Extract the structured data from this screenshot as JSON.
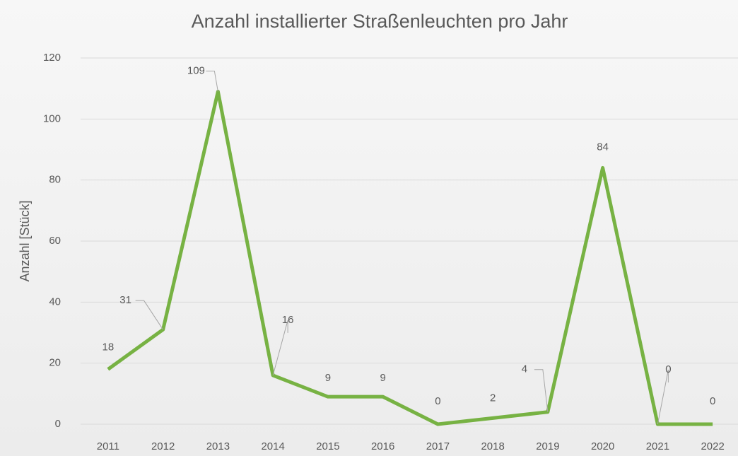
{
  "chart_data": {
    "type": "line",
    "title": "Anzahl installierter Straßenleuchten pro Jahr",
    "y_label": "Anzahl [Stück]",
    "categories": [
      "2011",
      "2012",
      "2013",
      "2014",
      "2015",
      "2016",
      "2017",
      "2018",
      "2019",
      "2020",
      "2021",
      "2022"
    ],
    "series": [
      {
        "name": "Anzahl",
        "color": "#77b243",
        "values": [
          18,
          31,
          109,
          16,
          9,
          9,
          0,
          2,
          4,
          84,
          0,
          0
        ]
      }
    ],
    "ylim": [
      0,
      120
    ],
    "yticks": [
      0,
      20,
      40,
      60,
      80,
      100,
      120
    ],
    "grid": true
  }
}
